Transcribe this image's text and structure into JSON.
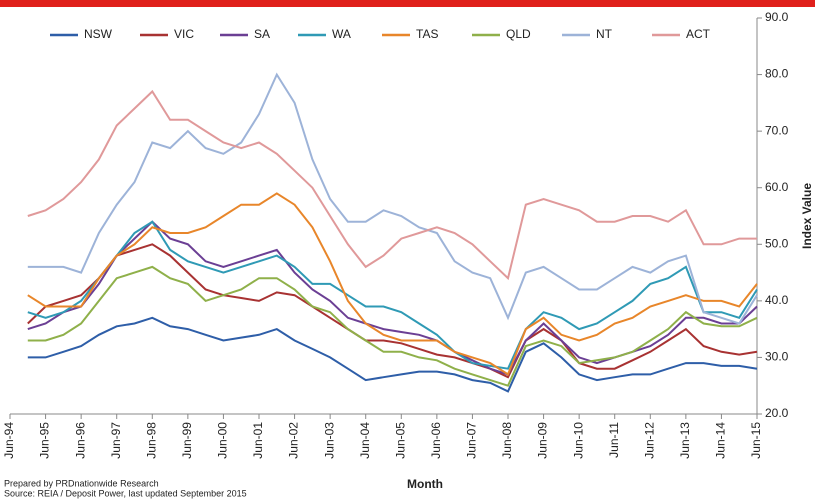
{
  "chart_data": {
    "type": "line",
    "y_label": "Index Value",
    "x_label": "Month",
    "notes": [
      "Prepared by PRDnationwide Research",
      "Source: REIA / Deposit Power, last updated September 2015"
    ],
    "categories": [
      "Jun-94",
      null,
      "Jun-95",
      null,
      "Jun-96",
      null,
      "Jun-97",
      null,
      "Jun-98",
      null,
      "Jun-99",
      null,
      "Jun-00",
      null,
      "Jun-01",
      null,
      "Jun-02",
      null,
      "Jun-03",
      null,
      "Jun-04",
      null,
      "Jun-05",
      null,
      "Jun-06",
      null,
      "Jun-07",
      null,
      "Jun-08",
      null,
      "Jun-09",
      null,
      "Jun-10",
      null,
      "Jun-11",
      null,
      "Jun-12",
      null,
      "Jun-13",
      null,
      "Jun-14",
      null,
      "Jun-15"
    ],
    "series": [
      {
        "name": "NSW",
        "color": "#2e5ea8",
        "values": [
          null,
          30,
          30,
          31,
          32,
          34,
          35.5,
          36,
          37,
          35.5,
          35,
          34,
          33,
          33.5,
          34,
          35,
          33,
          31.5,
          30,
          28,
          26,
          26.5,
          27,
          27.5,
          27.5,
          27,
          26,
          25.5,
          24,
          31,
          32.5,
          30,
          27,
          26,
          26.5,
          27,
          27,
          28,
          29,
          29,
          28.5,
          28.5,
          28
        ]
      },
      {
        "name": "VIC",
        "color": "#a83232",
        "values": [
          null,
          36,
          39,
          40,
          41,
          44,
          48,
          49,
          50,
          48,
          45,
          42,
          41,
          40.5,
          40,
          41.5,
          41,
          39,
          37,
          35,
          33,
          33,
          32.5,
          31.5,
          30.5,
          30,
          29,
          28,
          26.5,
          33,
          35,
          33,
          29,
          28,
          28,
          29.5,
          31,
          33,
          35,
          32,
          31,
          30.5,
          31
        ]
      },
      {
        "name": "SA",
        "color": "#6b3f94",
        "values": [
          null,
          35,
          36,
          38,
          39,
          43,
          48,
          51,
          54,
          51,
          50,
          47,
          46,
          47,
          48,
          49,
          45,
          42,
          40,
          37,
          36,
          35,
          34.5,
          34,
          33,
          31,
          29.5,
          28,
          27,
          33,
          36,
          33,
          30,
          29,
          30,
          31,
          32,
          34,
          37,
          37,
          36,
          36,
          39
        ]
      },
      {
        "name": "WA",
        "color": "#2f9ab5",
        "values": [
          null,
          38,
          37,
          38,
          40,
          44,
          48,
          52,
          54,
          49,
          47,
          46,
          45,
          46,
          47,
          48,
          46,
          43,
          43,
          41,
          39,
          39,
          38,
          36,
          34,
          31,
          29,
          28.5,
          28,
          35,
          38,
          37,
          35,
          36,
          38,
          40,
          43,
          44,
          46,
          38,
          38,
          37,
          42
        ]
      },
      {
        "name": "TAS",
        "color": "#e8862a",
        "values": [
          null,
          41,
          39,
          39,
          39,
          44,
          48,
          50,
          53,
          52,
          52,
          53,
          55,
          57,
          57,
          59,
          57,
          53,
          47,
          40,
          36,
          34,
          33,
          33,
          33,
          31,
          30,
          29,
          27,
          35,
          37,
          34,
          33,
          34,
          36,
          37,
          39,
          40,
          41,
          40,
          40,
          39,
          43
        ]
      },
      {
        "name": "QLD",
        "color": "#8fb04a",
        "values": [
          null,
          33,
          33,
          34,
          36,
          40,
          44,
          45,
          46,
          44,
          43,
          40,
          41,
          42,
          44,
          44,
          42,
          39,
          38,
          35,
          33,
          31,
          31,
          30,
          29.5,
          28,
          27,
          26,
          25,
          32,
          33,
          32,
          29,
          29.5,
          30,
          31,
          33,
          35,
          38,
          36,
          35.5,
          35.5,
          37
        ]
      },
      {
        "name": "NT",
        "color": "#9db3d8",
        "values": [
          null,
          46,
          46,
          46,
          45,
          52,
          57,
          61,
          68,
          67,
          70,
          67,
          66,
          68,
          73,
          80,
          75,
          65,
          58,
          54,
          54,
          56,
          55,
          53,
          52,
          47,
          45,
          44,
          37,
          45,
          46,
          44,
          42,
          42,
          44,
          46,
          45,
          47,
          48,
          38,
          37,
          36,
          41
        ]
      },
      {
        "name": "ACT",
        "color": "#e0999a",
        "values": [
          null,
          55,
          56,
          58,
          61,
          65,
          71,
          74,
          77,
          72,
          72,
          70,
          68,
          67,
          68,
          66,
          63,
          60,
          55,
          50,
          46,
          48,
          51,
          52,
          53,
          52,
          50,
          47,
          44,
          57,
          58,
          57,
          56,
          54,
          54,
          55,
          55,
          54,
          56,
          50,
          50,
          51,
          51
        ]
      }
    ],
    "ylim": [
      20,
      90
    ],
    "yticks": [
      {
        "value": 20,
        "label": "20.0"
      },
      {
        "value": 30,
        "label": "30.0"
      },
      {
        "value": 40,
        "label": "40.0"
      },
      {
        "value": 50,
        "label": "50.0"
      },
      {
        "value": 60,
        "label": "60.0"
      },
      {
        "value": 70,
        "label": "70.0"
      },
      {
        "value": 80,
        "label": "80.0"
      },
      {
        "value": 90,
        "label": "90.0"
      }
    ],
    "grid": false,
    "legend": "top"
  }
}
